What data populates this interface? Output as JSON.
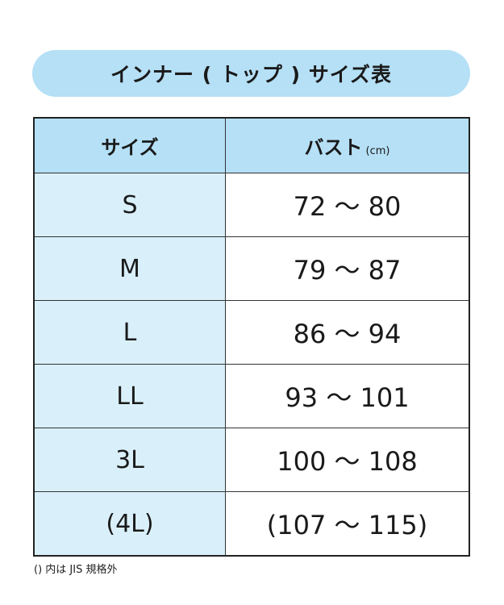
{
  "title": "インナー ( トップ ) サイズ表",
  "table": {
    "headers": {
      "size": "サイズ",
      "bust": "バスト",
      "bust_unit": "(cm)"
    },
    "rows": [
      {
        "size": "S",
        "bust": "72 〜 80"
      },
      {
        "size": "M",
        "bust": "79 〜 87"
      },
      {
        "size": "L",
        "bust": "86 〜 94"
      },
      {
        "size": "LL",
        "bust": "93 〜 101"
      },
      {
        "size": "3L",
        "bust": "100 〜 108"
      },
      {
        "size": "(4L)",
        "bust": "(107 〜 115)"
      }
    ]
  },
  "note": "() 内は JIS 規格外",
  "colors": {
    "header": "#b5e0f6",
    "size_cell": "#d9f0fb"
  }
}
